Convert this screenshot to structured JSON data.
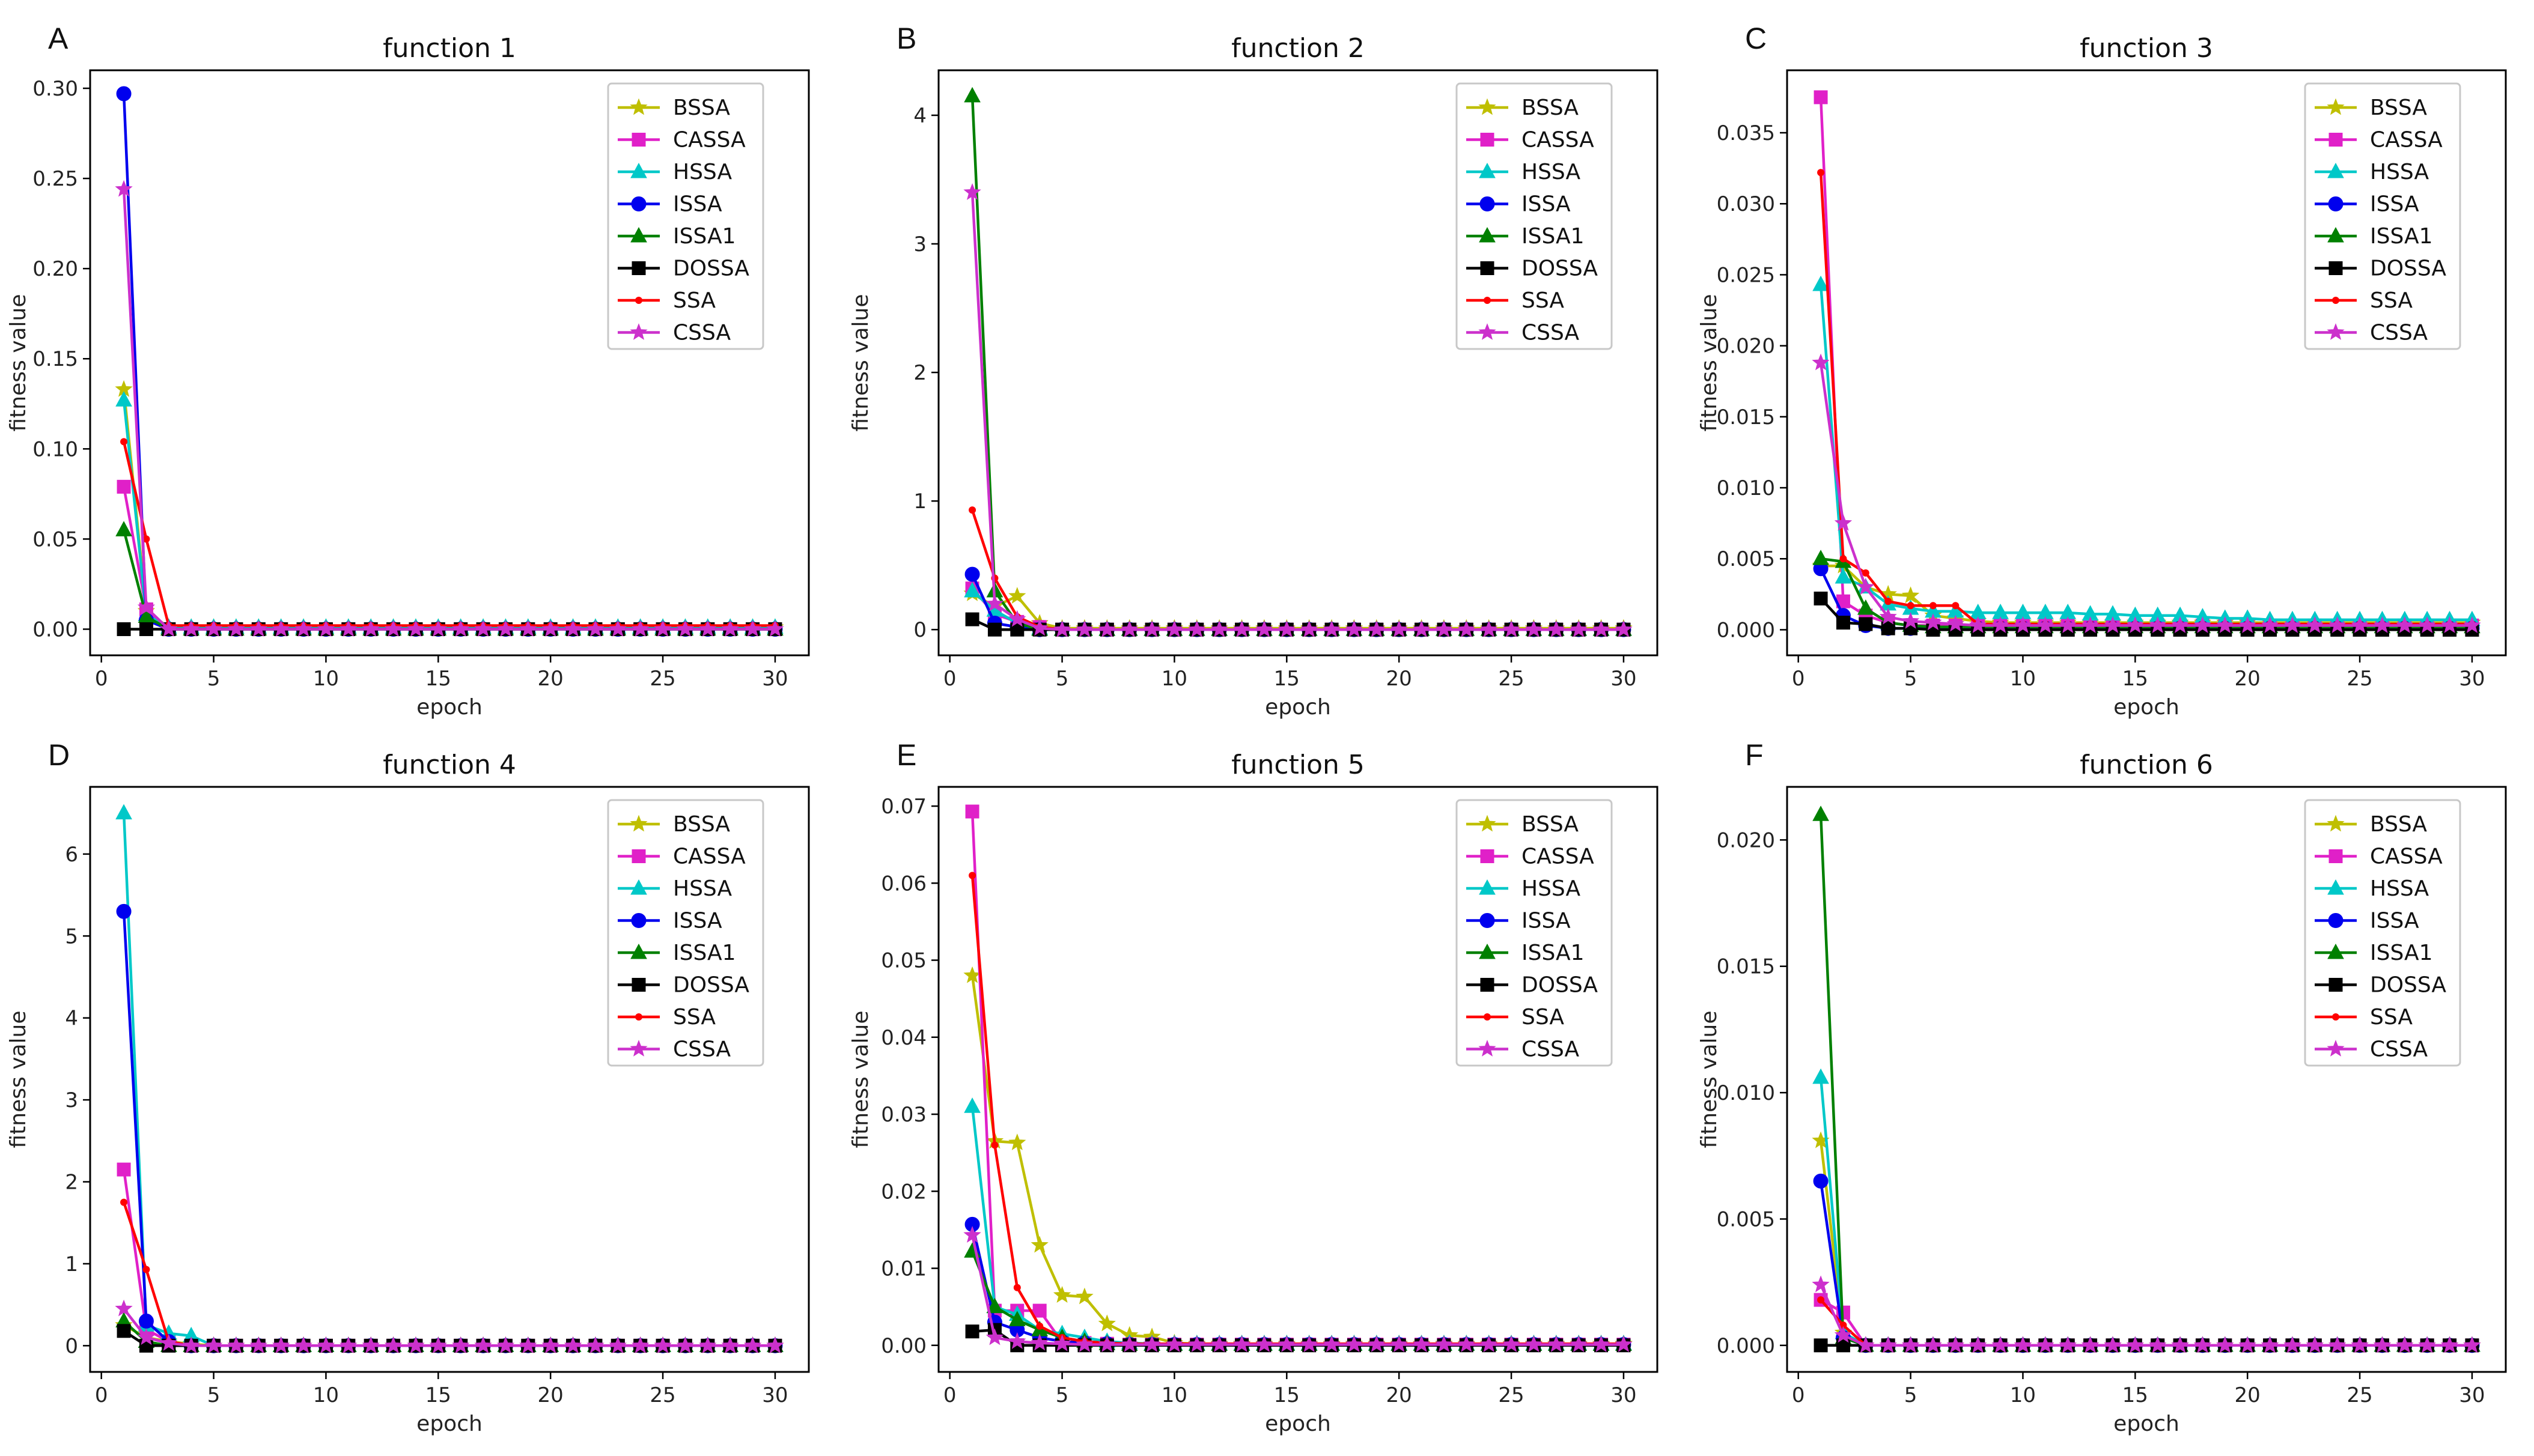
{
  "colors": {
    "BSSA": "#bfbf00",
    "CASSA": "#e020c8",
    "HSSA": "#00c8c8",
    "ISSA": "#0000ee",
    "ISSA1": "#008000",
    "DOSSA": "#000000",
    "SSA": "#ff0000",
    "CSSA": "#cc30cc"
  },
  "markers": {
    "BSSA": "star",
    "CASSA": "square",
    "HSSA": "triangle",
    "ISSA": "circle",
    "ISSA1": "triangle",
    "DOSSA": "square",
    "SSA": "dot",
    "CSSA": "star"
  },
  "chart_data": [
    {
      "type": "line",
      "letter": "A",
      "title": "function 1",
      "xlabel": "epoch",
      "ylabel": "fitness value",
      "xlim": [
        -0.5,
        31.5
      ],
      "ylim": [
        -0.0145,
        0.31
      ],
      "xticks": [
        0,
        5,
        10,
        15,
        20,
        25,
        30
      ],
      "yticks": [
        0,
        0.05,
        0.1,
        0.15,
        0.2,
        0.25,
        0.3
      ],
      "ytick_labels": [
        "0.00",
        "0.05",
        "0.10",
        "0.15",
        "0.20",
        "0.25",
        "0.30"
      ],
      "legend": [
        "BSSA",
        "CASSA",
        "HSSA",
        "ISSA",
        "ISSA1",
        "DOSSA",
        "SSA",
        "CSSA"
      ],
      "series": [
        {
          "name": "BSSA",
          "values": [
            0.133,
            0.01,
            0.001
          ]
        },
        {
          "name": "CASSA",
          "values": [
            0.079,
            0.011,
            0.0
          ]
        },
        {
          "name": "HSSA",
          "values": [
            0.127,
            0.008,
            0.001
          ]
        },
        {
          "name": "ISSA",
          "values": [
            0.297,
            0.005,
            0.0
          ]
        },
        {
          "name": "ISSA1",
          "values": [
            0.055,
            0.007,
            0.0
          ]
        },
        {
          "name": "DOSSA",
          "values": [
            0.0,
            0.0,
            0.0
          ]
        },
        {
          "name": "SSA",
          "values": [
            0.104,
            0.05,
            0.002
          ]
        },
        {
          "name": "CSSA",
          "values": [
            0.244,
            0.012,
            0.0
          ]
        }
      ]
    },
    {
      "type": "line",
      "letter": "B",
      "title": "function 2",
      "xlabel": "epoch",
      "ylabel": "fitness value",
      "xlim": [
        -0.5,
        31.5
      ],
      "ylim": [
        -0.2,
        4.35
      ],
      "xticks": [
        0,
        5,
        10,
        15,
        20,
        25,
        30
      ],
      "yticks": [
        0,
        1,
        2,
        3,
        4
      ],
      "ytick_labels": [
        "0",
        "1",
        "2",
        "3",
        "4"
      ],
      "legend": [
        "BSSA",
        "CASSA",
        "HSSA",
        "ISSA",
        "ISSA1",
        "DOSSA",
        "SSA",
        "CSSA"
      ],
      "series": [
        {
          "name": "BSSA",
          "values": [
            0.28,
            0.18,
            0.26,
            0.05,
            0.01
          ]
        },
        {
          "name": "CASSA",
          "values": [
            0.32,
            0.12,
            0.06,
            0.02,
            0.0
          ]
        },
        {
          "name": "HSSA",
          "values": [
            0.3,
            0.15,
            0.05,
            0.01,
            0.0
          ]
        },
        {
          "name": "ISSA",
          "values": [
            0.43,
            0.05,
            0.02,
            0.0,
            0.0
          ]
        },
        {
          "name": "ISSA1",
          "values": [
            4.15,
            0.3,
            0.05,
            0.0,
            0.0
          ]
        },
        {
          "name": "DOSSA",
          "values": [
            0.08,
            0.0,
            0.0,
            0.0,
            0.0
          ]
        },
        {
          "name": "SSA",
          "values": [
            0.93,
            0.4,
            0.1,
            0.02,
            0.0
          ]
        },
        {
          "name": "CSSA",
          "values": [
            3.4,
            0.2,
            0.08,
            0.01,
            0.0
          ]
        }
      ]
    },
    {
      "type": "line",
      "letter": "C",
      "title": "function 3",
      "xlabel": "epoch",
      "ylabel": "fitness value",
      "xlim": [
        -0.5,
        31.5
      ],
      "ylim": [
        -0.0018,
        0.0394
      ],
      "xticks": [
        0,
        5,
        10,
        15,
        20,
        25,
        30
      ],
      "yticks": [
        0,
        0.005,
        0.01,
        0.015,
        0.02,
        0.025,
        0.03,
        0.035
      ],
      "ytick_labels": [
        "0.000",
        "0.005",
        "0.010",
        "0.015",
        "0.020",
        "0.025",
        "0.030",
        "0.035"
      ],
      "legend": [
        "BSSA",
        "CASSA",
        "HSSA",
        "ISSA",
        "ISSA1",
        "DOSSA",
        "SSA",
        "CSSA"
      ],
      "series": [
        {
          "name": "BSSA",
          "values": [
            0.0045,
            0.0045,
            0.003,
            0.0025,
            0.0024,
            0.001,
            0.0008,
            0.0006,
            0.0005,
            0.0005,
            0.0005,
            0.0005,
            0.0005,
            0.0005,
            0.0005,
            0.0005,
            0.0005,
            0.0005,
            0.0005,
            0.0005,
            0.0005,
            0.0005,
            0.0005,
            0.0005,
            0.0005,
            0.0005,
            0.0005,
            0.0005,
            0.0005,
            0.0005
          ]
        },
        {
          "name": "CASSA",
          "values": [
            0.0375,
            0.002,
            0.001,
            0.0005,
            0.0003,
            0.0003,
            0.0003,
            0.0003,
            0.0003,
            0.0003,
            0.0003,
            0.0003,
            0.0003,
            0.0003,
            0.0003,
            0.0003,
            0.0003,
            0.0003,
            0.0003,
            0.0003,
            0.0003,
            0.0003,
            0.0003,
            0.0003,
            0.0003,
            0.0003,
            0.0003,
            0.0003,
            0.0003,
            0.0003
          ]
        },
        {
          "name": "HSSA",
          "values": [
            0.0243,
            0.0037,
            0.003,
            0.0018,
            0.0015,
            0.0013,
            0.0013,
            0.0012,
            0.0012,
            0.0012,
            0.0012,
            0.0012,
            0.0011,
            0.0011,
            0.001,
            0.001,
            0.001,
            0.0009,
            0.0008,
            0.0008,
            0.0007,
            0.0007,
            0.0007,
            0.0007,
            0.0007,
            0.0007,
            0.0007,
            0.0007,
            0.0007,
            0.0007
          ]
        },
        {
          "name": "ISSA",
          "values": [
            0.0043,
            0.001,
            0.0003,
            0.0001,
            0.0001,
            0.0001,
            0.0001,
            0.0001,
            0.0001,
            0.0001,
            0.0001,
            0.0001,
            0.0001,
            0.0001,
            0.0001,
            0.0001,
            0.0001,
            0.0001,
            0.0001,
            0.0001,
            0.0001,
            0.0001,
            0.0001,
            0.0001,
            0.0001,
            0.0001,
            0.0001,
            0.0001,
            0.0001,
            0.0001
          ]
        },
        {
          "name": "ISSA1",
          "values": [
            0.005,
            0.0048,
            0.0015,
            0.0005,
            0.0003,
            0.0002,
            0.0002,
            0.0002,
            0.0002,
            0.0002,
            0.0002,
            0.0002,
            0.0002,
            0.0002,
            0.0002,
            0.0002,
            0.0002,
            0.0002,
            0.0002,
            0.0002,
            0.0002,
            0.0002,
            0.0002,
            0.0002,
            0.0002,
            0.0002,
            0.0002,
            0.0002,
            0.0002,
            0.0002
          ]
        },
        {
          "name": "DOSSA",
          "values": [
            0.0022,
            0.0005,
            0.0004,
            0.0001,
            0.0001,
            0.0,
            0.0,
            0.0,
            0.0,
            0.0,
            0.0,
            0.0,
            0.0,
            0.0,
            0.0,
            0.0,
            0.0,
            0.0,
            0.0,
            0.0,
            0.0,
            0.0,
            0.0,
            0.0,
            0.0,
            0.0,
            0.0,
            0.0,
            0.0,
            0.0
          ]
        },
        {
          "name": "SSA",
          "values": [
            0.0322,
            0.005,
            0.004,
            0.002,
            0.0017,
            0.0017,
            0.0017,
            0.0004,
            0.0004,
            0.0004,
            0.0004,
            0.0004,
            0.0004,
            0.0004,
            0.0004,
            0.0004,
            0.0004,
            0.0004,
            0.0004,
            0.0004,
            0.0004,
            0.0004,
            0.0004,
            0.0004,
            0.0004,
            0.0004,
            0.0004,
            0.0004,
            0.0004,
            0.0004
          ]
        },
        {
          "name": "CSSA",
          "values": [
            0.0188,
            0.0075,
            0.003,
            0.0009,
            0.0006,
            0.0005,
            0.0004,
            0.0003,
            0.0003,
            0.0003,
            0.0003,
            0.0003,
            0.0003,
            0.0003,
            0.0003,
            0.0003,
            0.0003,
            0.0003,
            0.0003,
            0.0003,
            0.0003,
            0.0003,
            0.0003,
            0.0003,
            0.0003,
            0.0003,
            0.0003,
            0.0003,
            0.0003,
            0.0003
          ]
        }
      ]
    },
    {
      "type": "line",
      "letter": "D",
      "title": "function 4",
      "xlabel": "epoch",
      "ylabel": "fitness value",
      "xlim": [
        -0.5,
        31.5
      ],
      "ylim": [
        -0.32,
        6.82
      ],
      "xticks": [
        0,
        5,
        10,
        15,
        20,
        25,
        30
      ],
      "yticks": [
        0,
        1,
        2,
        3,
        4,
        5,
        6
      ],
      "ytick_labels": [
        "0",
        "1",
        "2",
        "3",
        "4",
        "5",
        "6"
      ],
      "legend": [
        "BSSA",
        "CASSA",
        "HSSA",
        "ISSA",
        "ISSA1",
        "DOSSA",
        "SSA",
        "CSSA"
      ],
      "series": [
        {
          "name": "BSSA",
          "values": [
            0.25,
            0.1,
            0.05,
            0.02,
            0.0
          ]
        },
        {
          "name": "CASSA",
          "values": [
            2.15,
            0.2,
            0.05,
            0.0,
            0.0
          ]
        },
        {
          "name": "HSSA",
          "values": [
            6.5,
            0.25,
            0.15,
            0.12,
            0.0
          ]
        },
        {
          "name": "ISSA",
          "values": [
            5.3,
            0.3,
            0.05,
            0.0,
            0.0
          ]
        },
        {
          "name": "ISSA1",
          "values": [
            0.3,
            0.05,
            0.0,
            0.0,
            0.0
          ]
        },
        {
          "name": "DOSSA",
          "values": [
            0.18,
            0.0,
            0.0,
            0.0,
            0.0
          ]
        },
        {
          "name": "SSA",
          "values": [
            1.75,
            0.93,
            0.05,
            0.0,
            0.0
          ]
        },
        {
          "name": "CSSA",
          "values": [
            0.45,
            0.1,
            0.03,
            0.0,
            0.0
          ]
        }
      ]
    },
    {
      "type": "line",
      "letter": "E",
      "title": "function 5",
      "xlabel": "epoch",
      "ylabel": "fitness value",
      "xlim": [
        -0.5,
        31.5
      ],
      "ylim": [
        -0.00345,
        0.0725
      ],
      "xticks": [
        0,
        5,
        10,
        15,
        20,
        25,
        30
      ],
      "yticks": [
        0,
        0.01,
        0.02,
        0.03,
        0.04,
        0.05,
        0.06,
        0.07
      ],
      "ytick_labels": [
        "0.00",
        "0.01",
        "0.02",
        "0.03",
        "0.04",
        "0.05",
        "0.06",
        "0.07"
      ],
      "legend": [
        "BSSA",
        "CASSA",
        "HSSA",
        "ISSA",
        "ISSA1",
        "DOSSA",
        "SSA",
        "CSSA"
      ],
      "series": [
        {
          "name": "BSSA",
          "values": [
            0.048,
            0.0265,
            0.0263,
            0.013,
            0.0065,
            0.0063,
            0.0028,
            0.0013,
            0.0011,
            0.0003,
            0.0002,
            0.0002
          ]
        },
        {
          "name": "CASSA",
          "values": [
            0.0693,
            0.0045,
            0.0045,
            0.0045,
            0.0004,
            0.0003,
            0.0002,
            0.0001,
            0.0001,
            0.0001,
            0.0001,
            0.0001
          ]
        },
        {
          "name": "HSSA",
          "values": [
            0.031,
            0.005,
            0.004,
            0.002,
            0.0015,
            0.001,
            0.0005,
            0.0003,
            0.0002,
            0.0002,
            0.0002,
            0.0002
          ]
        },
        {
          "name": "ISSA",
          "values": [
            0.0157,
            0.003,
            0.002,
            0.001,
            0.0005,
            0.0003,
            0.0002,
            0.0001,
            0.0001,
            0.0001,
            0.0001,
            0.0001
          ]
        },
        {
          "name": "ISSA1",
          "values": [
            0.0122,
            0.005,
            0.0033,
            0.002,
            0.001,
            0.0005,
            0.0002,
            0.0001,
            0.0001,
            0.0001,
            0.0001,
            0.0001
          ]
        },
        {
          "name": "DOSSA",
          "values": [
            0.0018,
            0.002,
            0.0,
            0.0,
            0.0,
            0.0,
            0.0,
            0.0,
            0.0,
            0.0,
            0.0,
            0.0
          ]
        },
        {
          "name": "SSA",
          "values": [
            0.061,
            0.026,
            0.0075,
            0.0025,
            0.001,
            0.0005,
            0.0003,
            0.0002,
            0.0002,
            0.0002,
            0.0002,
            0.0002
          ]
        },
        {
          "name": "CSSA",
          "values": [
            0.0143,
            0.001,
            0.0005,
            0.0003,
            0.0002,
            0.0001,
            0.0001,
            0.0001,
            0.0001,
            0.0001,
            0.0001,
            0.0001
          ]
        }
      ]
    },
    {
      "type": "line",
      "letter": "F",
      "title": "function 6",
      "xlabel": "epoch",
      "ylabel": "fitness value",
      "xlim": [
        -0.5,
        31.5
      ],
      "ylim": [
        -0.00105,
        0.0221
      ],
      "xticks": [
        0,
        5,
        10,
        15,
        20,
        25,
        30
      ],
      "yticks": [
        0,
        0.005,
        0.01,
        0.015,
        0.02
      ],
      "ytick_labels": [
        "0.000",
        "0.005",
        "0.010",
        "0.015",
        "0.020"
      ],
      "legend": [
        "BSSA",
        "CASSA",
        "HSSA",
        "ISSA",
        "ISSA1",
        "DOSSA",
        "SSA",
        "CSSA"
      ],
      "series": [
        {
          "name": "BSSA",
          "values": [
            0.0081,
            0.0005,
            0.0
          ]
        },
        {
          "name": "CASSA",
          "values": [
            0.0018,
            0.0013,
            0.0
          ]
        },
        {
          "name": "HSSA",
          "values": [
            0.0106,
            0.0005,
            0.0
          ]
        },
        {
          "name": "ISSA",
          "values": [
            0.0065,
            0.0003,
            0.0
          ]
        },
        {
          "name": "ISSA1",
          "values": [
            0.021,
            0.0003,
            0.0
          ]
        },
        {
          "name": "DOSSA",
          "values": [
            0.0,
            0.0,
            0.0
          ]
        },
        {
          "name": "SSA",
          "values": [
            0.0018,
            0.0008,
            0.0
          ]
        },
        {
          "name": "CSSA",
          "values": [
            0.0024,
            0.0004,
            0.0
          ]
        }
      ]
    }
  ]
}
